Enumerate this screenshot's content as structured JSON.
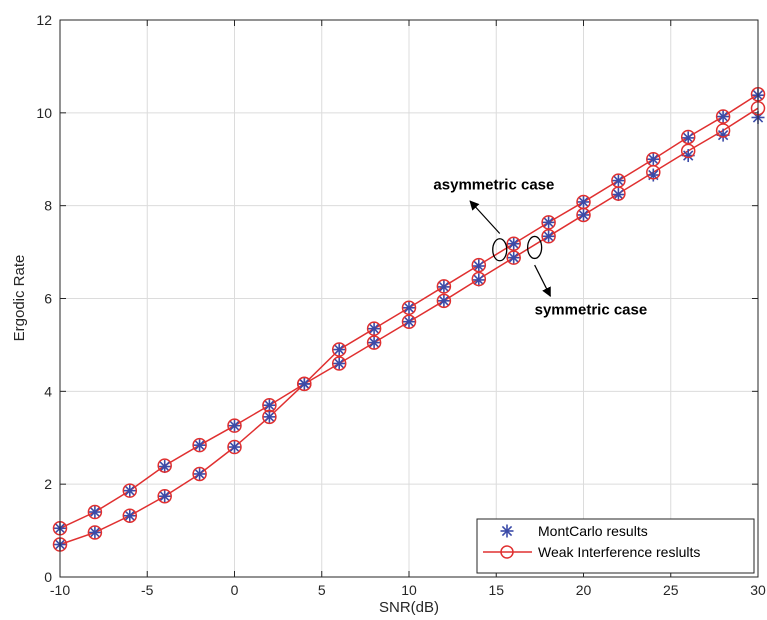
{
  "chart_data": {
    "type": "line",
    "title": "",
    "xlabel": "SNR(dB)",
    "ylabel": "Ergodic Rate",
    "xlim": [
      -10,
      30
    ],
    "ylim": [
      0,
      12
    ],
    "xticks": [
      -10,
      -5,
      0,
      5,
      10,
      15,
      20,
      25,
      30
    ],
    "yticks": [
      0,
      2,
      4,
      6,
      8,
      10,
      12
    ],
    "x_tick_labels": [
      "-10",
      "-5",
      "0",
      "5",
      "10",
      "15",
      "20",
      "25",
      "30"
    ],
    "y_tick_labels": [
      "0",
      "2",
      "4",
      "6",
      "8",
      "10",
      "12"
    ],
    "grid": true,
    "legend_position": "bottom-right",
    "legend": [
      "MontCarlo results",
      "Weak Interference reslults"
    ],
    "colors": {
      "montecarlo": "#3b4ba8",
      "weak_interference": "#e03030",
      "grid": "#dcdcdc"
    },
    "x": [
      -10,
      -8,
      -6,
      -4,
      -2,
      0,
      2,
      4,
      6,
      8,
      10,
      12,
      14,
      16,
      18,
      20,
      22,
      24,
      26,
      28,
      30
    ],
    "series": [
      {
        "group": "curve-upper",
        "montecarlo": [
          1.05,
          1.4,
          1.86,
          2.38,
          2.84,
          3.26,
          3.7,
          4.16,
          4.9,
          5.35,
          5.8,
          6.25,
          6.7,
          7.18,
          7.64,
          8.08,
          8.54,
          9.0,
          9.46,
          9.92,
          10.38
        ],
        "weak_interference": [
          1.05,
          1.4,
          1.86,
          2.4,
          2.84,
          3.26,
          3.7,
          4.16,
          4.9,
          5.35,
          5.8,
          6.26,
          6.72,
          7.18,
          7.64,
          8.08,
          8.54,
          9.0,
          9.48,
          9.92,
          10.4
        ]
      },
      {
        "group": "curve-lower",
        "montecarlo": [
          0.7,
          0.96,
          1.32,
          1.74,
          2.22,
          2.8,
          3.45,
          4.16,
          4.6,
          5.05,
          5.5,
          5.95,
          6.4,
          6.88,
          7.34,
          7.8,
          8.24,
          8.66,
          9.08,
          9.52,
          9.9
        ],
        "weak_interference": [
          0.7,
          0.96,
          1.32,
          1.74,
          2.22,
          2.8,
          3.45,
          4.16,
          4.6,
          5.05,
          5.5,
          5.95,
          6.42,
          6.88,
          7.34,
          7.8,
          8.26,
          8.72,
          9.18,
          9.62,
          10.1
        ]
      }
    ],
    "annotations": [
      {
        "text": "asymmetric case",
        "x": 11.4,
        "y": 8.35,
        "ellipse": {
          "x": 15.2,
          "y": 7.05
        },
        "arrow_from": {
          "x": 15.2,
          "y": 7.4
        },
        "arrow_to": {
          "x": 13.5,
          "y": 8.1
        }
      },
      {
        "text": "symmetric case",
        "x": 17.2,
        "y": 5.65,
        "ellipse": {
          "x": 17.2,
          "y": 7.1
        },
        "arrow_from": {
          "x": 17.2,
          "y": 6.72
        },
        "arrow_to": {
          "x": 18.1,
          "y": 6.05
        }
      }
    ]
  }
}
